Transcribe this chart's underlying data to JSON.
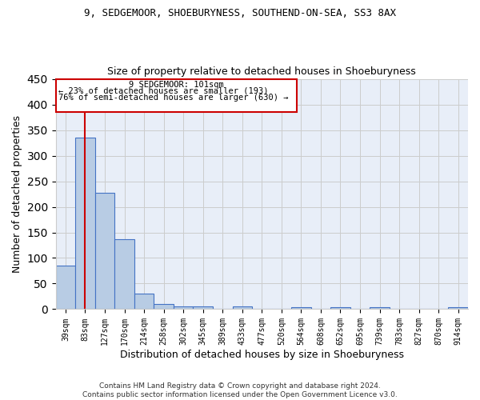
{
  "title1": "9, SEDGEMOOR, SHOEBURYNESS, SOUTHEND-ON-SEA, SS3 8AX",
  "title2": "Size of property relative to detached houses in Shoeburyness",
  "xlabel": "Distribution of detached houses by size in Shoeburyness",
  "ylabel": "Number of detached properties",
  "categories": [
    "39sqm",
    "83sqm",
    "127sqm",
    "170sqm",
    "214sqm",
    "258sqm",
    "302sqm",
    "345sqm",
    "389sqm",
    "433sqm",
    "477sqm",
    "520sqm",
    "564sqm",
    "608sqm",
    "652sqm",
    "695sqm",
    "739sqm",
    "783sqm",
    "827sqm",
    "870sqm",
    "914sqm"
  ],
  "values": [
    85,
    335,
    228,
    136,
    30,
    10,
    5,
    6,
    0,
    5,
    0,
    0,
    4,
    0,
    4,
    0,
    4,
    0,
    0,
    0,
    4
  ],
  "bar_color": "#b8cce4",
  "bar_edge_color": "#4472c4",
  "vline_x": 1,
  "vline_color": "#cc0000",
  "annotation_line1": "9 SEDGEMOOR: 101sqm",
  "annotation_line2": "← 23% of detached houses are smaller (193)",
  "annotation_line3": "76% of semi-detached houses are larger (630) →",
  "annotation_box_color": "#cc0000",
  "ylim": [
    0,
    450
  ],
  "yticks": [
    0,
    50,
    100,
    150,
    200,
    250,
    300,
    350,
    400,
    450
  ],
  "footer1": "Contains HM Land Registry data © Crown copyright and database right 2024.",
  "footer2": "Contains public sector information licensed under the Open Government Licence v3.0.",
  "bg_color": "#e8eef8"
}
